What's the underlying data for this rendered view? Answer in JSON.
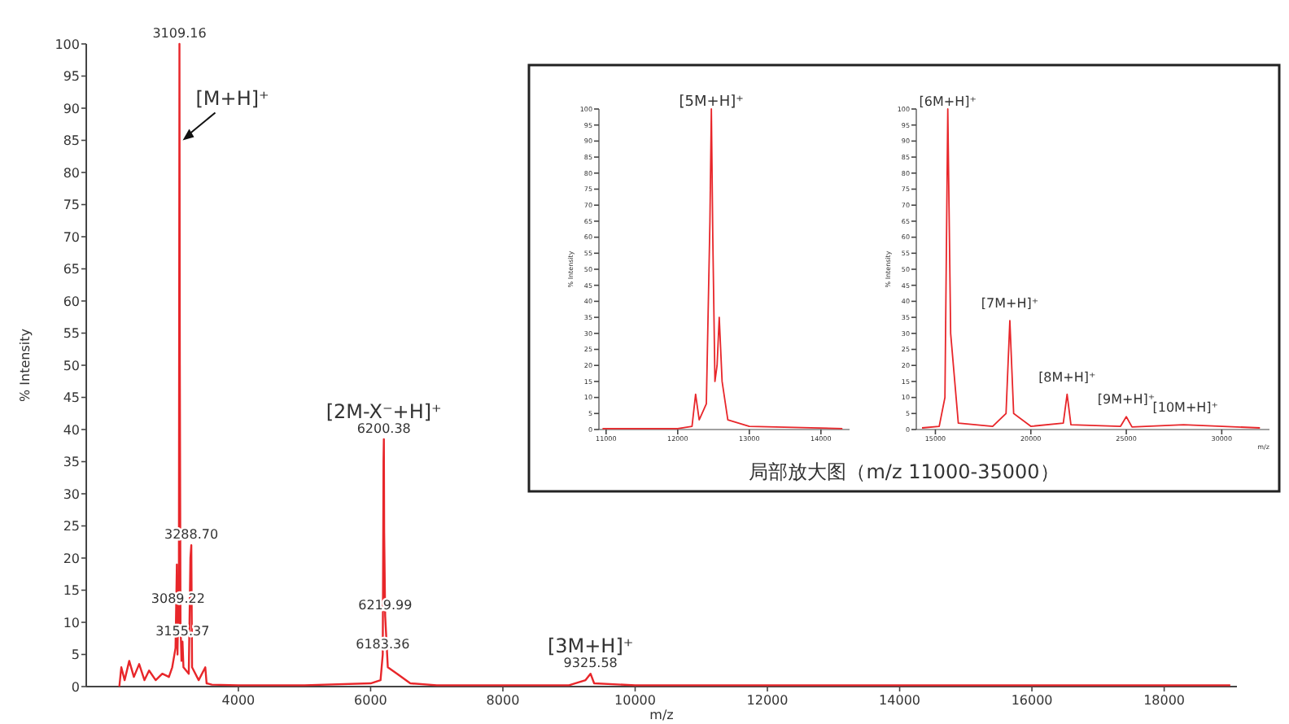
{
  "chart_data": [
    {
      "type": "line",
      "xlabel": "m/z",
      "ylabel": "% Intensity",
      "xlim": [
        1700,
        19100
      ],
      "ylim": [
        0,
        100
      ],
      "xticks": [
        4000,
        6000,
        8000,
        10000,
        12000,
        14000,
        16000,
        18000
      ],
      "yticks": [
        0,
        5,
        10,
        15,
        20,
        25,
        30,
        35,
        40,
        45,
        50,
        55,
        60,
        65,
        70,
        75,
        80,
        85,
        90,
        95,
        100
      ],
      "series": [
        {
          "color": "#e8262a",
          "x": [
            2200,
            2230,
            2280,
            2350,
            2420,
            2500,
            2580,
            2650,
            2750,
            2850,
            2950,
            3000,
            3050,
            3070,
            3080,
            3089.22,
            3100,
            3109.16,
            3115,
            3125,
            3140,
            3155.37,
            3170,
            3250,
            3275,
            3288.7,
            3300,
            3400,
            3500,
            3520,
            3600,
            4000,
            5000,
            6000,
            6150,
            6183.36,
            6195,
            6200.38,
            6205,
            6219.99,
            6260,
            6400,
            6600,
            7000,
            9000,
            9250,
            9325.58,
            9380,
            10000,
            19000
          ],
          "values": [
            0,
            3,
            1,
            4,
            1.5,
            3.5,
            1,
            2.5,
            1,
            2,
            1.5,
            3,
            6,
            19,
            5,
            12,
            8,
            100,
            50,
            10,
            4,
            7,
            3,
            2,
            20,
            22,
            3,
            1,
            3,
            0.5,
            0.3,
            0.2,
            0.2,
            0.5,
            1,
            5,
            35,
            38.5,
            24,
            11,
            3,
            2,
            0.5,
            0.2,
            0.2,
            1,
            2,
            0.5,
            0.2,
            0.2
          ]
        }
      ],
      "annotations": [
        {
          "text": "3109.16",
          "x": 3109.16,
          "y": 100
        },
        {
          "text": "3288.70",
          "x": 3288.7,
          "y": 22
        },
        {
          "text": "3089.22",
          "x": 3089.22,
          "y": 12
        },
        {
          "text": "3155.37",
          "x": 3155.37,
          "y": 7
        },
        {
          "text": "6200.38",
          "x": 6200.38,
          "y": 38.5
        },
        {
          "text": "6219.99",
          "x": 6219.99,
          "y": 11
        },
        {
          "text": "6183.36",
          "x": 6183.36,
          "y": 5
        },
        {
          "text": "9325.58",
          "x": 9325.58,
          "y": 2
        },
        {
          "text": "[M+H]⁺",
          "x": 3109.16,
          "y": 85
        },
        {
          "text": "[2M-X⁻+H]⁺",
          "x": 6200.38,
          "y": 38.5
        },
        {
          "text": "[3M+H]⁺",
          "x": 9325.58,
          "y": 2
        }
      ]
    },
    {
      "type": "line",
      "ylabel": "% Intensity",
      "xlim": [
        10900,
        14400
      ],
      "ylim": [
        0,
        100
      ],
      "xticks": [
        11000,
        12000,
        13000,
        14000
      ],
      "yticks": [
        0,
        5,
        10,
        15,
        20,
        25,
        30,
        35,
        40,
        45,
        50,
        55,
        60,
        65,
        70,
        75,
        80,
        85,
        90,
        95,
        100
      ],
      "series": [
        {
          "color": "#e8262a",
          "x": [
            10950,
            12000,
            12200,
            12250,
            12300,
            12400,
            12450,
            12470,
            12490,
            12520,
            12550,
            12580,
            12620,
            12700,
            13000,
            14300
          ],
          "values": [
            0.3,
            0.3,
            1,
            11,
            3,
            8,
            65,
            100,
            60,
            15,
            20,
            35,
            15,
            3,
            1,
            0.3
          ]
        }
      ],
      "annotations": [
        {
          "text": "[5M+H]⁺",
          "x": 12470,
          "y": 100
        },
        "局部放大图（m/z 11000-35000）"
      ]
    },
    {
      "type": "line",
      "xlabel": "m/z",
      "ylabel": "% Intensity",
      "xlim": [
        14000,
        32500
      ],
      "ylim": [
        0,
        100
      ],
      "xticks": [
        15000,
        20000,
        25000,
        30000
      ],
      "yticks": [
        0,
        5,
        10,
        15,
        20,
        25,
        30,
        35,
        40,
        45,
        50,
        55,
        60,
        65,
        70,
        75,
        80,
        85,
        90,
        95,
        100
      ],
      "series": [
        {
          "color": "#e8262a",
          "x": [
            14300,
            15200,
            15500,
            15650,
            15800,
            16200,
            18000,
            18700,
            18900,
            19100,
            20000,
            21700,
            21900,
            22100,
            24700,
            25000,
            25300,
            28000,
            32000
          ],
          "values": [
            0.5,
            1,
            10,
            100,
            30,
            2,
            1,
            5,
            34,
            5,
            1,
            2,
            11,
            1.5,
            1,
            4,
            0.8,
            1.5,
            0.5
          ]
        }
      ],
      "annotations": [
        {
          "text": "[6M+H]⁺",
          "x": 15650,
          "y": 100
        },
        {
          "text": "[7M+H]⁺",
          "x": 18900,
          "y": 34
        },
        {
          "text": "[8M+H]⁺",
          "x": 21900,
          "y": 11
        },
        {
          "text": "[9M+H]⁺",
          "x": 25000,
          "y": 4
        },
        {
          "text": "[10M+H]⁺",
          "x": 28100,
          "y": 1.5
        }
      ]
    }
  ]
}
